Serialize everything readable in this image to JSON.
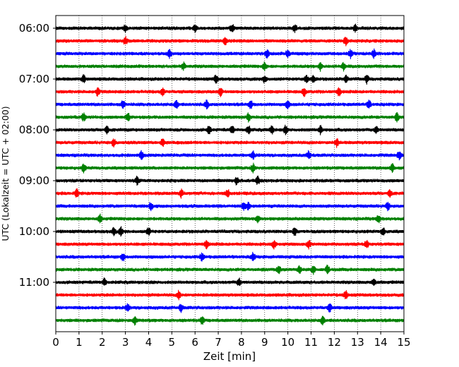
{
  "chart_data": {
    "type": "line",
    "title": "",
    "xlabel": "Zeit  [min]",
    "ylabel": "UTC (Lokalzeit = UTC + 02:00)",
    "xlim": [
      0,
      15
    ],
    "x_ticks": [
      0,
      1,
      2,
      3,
      4,
      5,
      6,
      7,
      8,
      9,
      10,
      11,
      12,
      13,
      14,
      15
    ],
    "x_tick_labels": [
      "0",
      "1",
      "2",
      "3",
      "4",
      "5",
      "6",
      "7",
      "8",
      "9",
      "10",
      "11",
      "12",
      "13",
      "14",
      "15"
    ],
    "y_tick_labels": [
      "06:00",
      "07:00",
      "08:00",
      "09:00",
      "10:00",
      "11:00"
    ],
    "y_tick_rows": [
      0,
      4,
      8,
      12,
      16,
      20
    ],
    "row_interval_minutes": 15,
    "grid": {
      "x": true,
      "style": "dotted"
    },
    "legend": "none",
    "trace_colors": [
      "#000000",
      "#ff0000",
      "#0000ff",
      "#008000"
    ],
    "traces": [
      {
        "start": "06:00",
        "color": "#000000",
        "events": [
          3.0,
          6.0,
          7.6,
          10.3,
          12.9
        ]
      },
      {
        "start": "06:15",
        "color": "#ff0000",
        "events": [
          3.0,
          7.3,
          12.5
        ]
      },
      {
        "start": "06:30",
        "color": "#0000ff",
        "events": [
          4.9,
          9.1,
          10.0,
          12.7,
          13.7
        ]
      },
      {
        "start": "06:45",
        "color": "#008000",
        "events": [
          5.5,
          9.0,
          11.4,
          12.4
        ]
      },
      {
        "start": "07:00",
        "color": "#000000",
        "events": [
          1.2,
          6.9,
          9.0,
          10.8,
          11.1,
          12.5,
          13.4
        ]
      },
      {
        "start": "07:15",
        "color": "#ff0000",
        "events": [
          1.8,
          4.6,
          7.1,
          10.7,
          12.2
        ]
      },
      {
        "start": "07:30",
        "color": "#0000ff",
        "events": [
          2.9,
          5.2,
          6.5,
          8.4,
          10.0,
          13.5
        ]
      },
      {
        "start": "07:45",
        "color": "#008000",
        "events": [
          1.2,
          3.1,
          8.3,
          14.7
        ]
      },
      {
        "start": "08:00",
        "color": "#000000",
        "events": [
          2.2,
          6.6,
          7.6,
          8.3,
          9.3,
          9.9,
          11.4,
          13.8
        ]
      },
      {
        "start": "08:15",
        "color": "#ff0000",
        "events": [
          2.5,
          4.6,
          12.1
        ]
      },
      {
        "start": "08:30",
        "color": "#0000ff",
        "events": [
          3.7,
          8.5,
          10.9,
          14.8
        ]
      },
      {
        "start": "08:45",
        "color": "#008000",
        "events": [
          1.2,
          8.5,
          14.5
        ]
      },
      {
        "start": "09:00",
        "color": "#000000",
        "events": [
          3.5,
          7.8,
          8.7
        ]
      },
      {
        "start": "09:15",
        "color": "#ff0000",
        "events": [
          0.9,
          5.4,
          7.4,
          14.4
        ]
      },
      {
        "start": "09:30",
        "color": "#0000ff",
        "events": [
          4.1,
          8.1,
          8.3,
          14.3
        ]
      },
      {
        "start": "09:45",
        "color": "#008000",
        "events": [
          1.9,
          8.7,
          13.9
        ]
      },
      {
        "start": "10:00",
        "color": "#000000",
        "events": [
          2.5,
          2.8,
          4.0,
          10.3,
          14.1
        ]
      },
      {
        "start": "10:15",
        "color": "#ff0000",
        "events": [
          6.5,
          9.4,
          10.9,
          13.4
        ]
      },
      {
        "start": "10:30",
        "color": "#0000ff",
        "events": [
          6.3,
          8.5,
          2.9
        ]
      },
      {
        "start": "10:45",
        "color": "#008000",
        "events": [
          9.6,
          10.5,
          11.1,
          11.7
        ]
      },
      {
        "start": "11:00",
        "color": "#000000",
        "events": [
          2.1,
          7.9,
          13.7
        ]
      },
      {
        "start": "11:15",
        "color": "#ff0000",
        "events": [
          5.3,
          12.5
        ]
      },
      {
        "start": "11:30",
        "color": "#0000ff",
        "events": [
          3.1,
          5.4,
          11.8
        ]
      },
      {
        "start": "11:45",
        "color": "#008000",
        "events": [
          3.4,
          6.3,
          11.5
        ]
      }
    ]
  }
}
